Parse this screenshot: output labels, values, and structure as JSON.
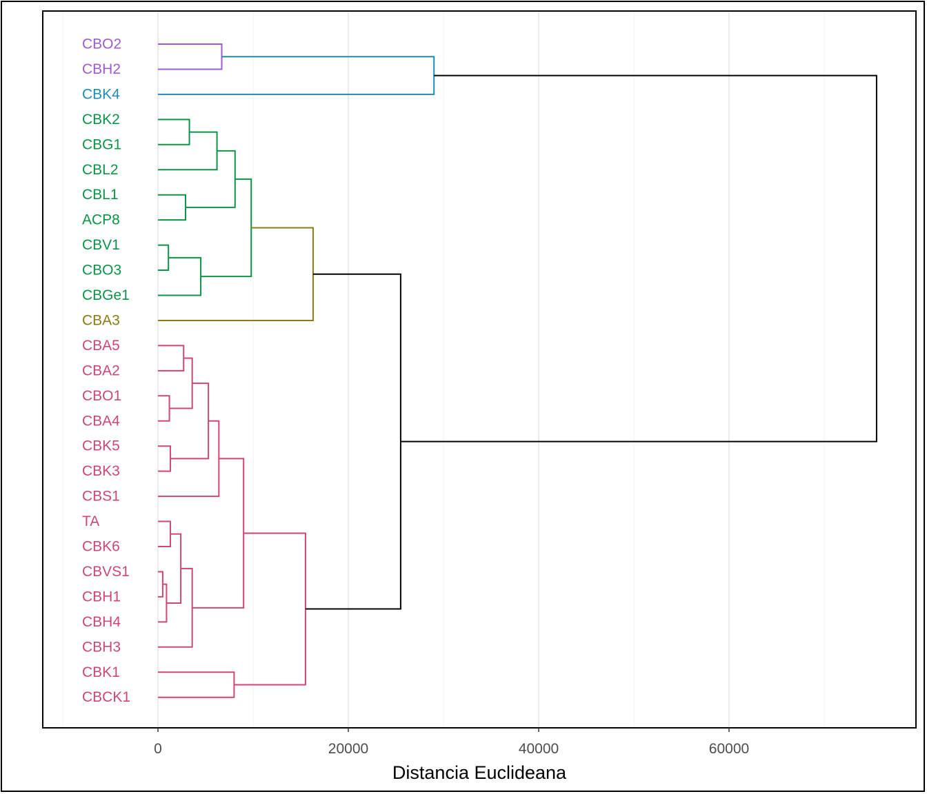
{
  "chart_data": {
    "type": "dendrogram",
    "title": "",
    "xlabel": "Distancia Euclideana",
    "ylabel": "",
    "xlim": [
      -10000,
      79000
    ],
    "x_ticks": [
      0,
      20000,
      40000,
      60000
    ],
    "x_tick_labels": [
      "0",
      "20000",
      "40000",
      "60000"
    ],
    "grid": true,
    "cluster_colors": {
      "purple": "#A05AD2",
      "blue": "#1E8CB4",
      "green": "#0A9446",
      "olive": "#8C7A14",
      "pink": "#CD4678",
      "root": "#000000"
    },
    "leaves": [
      {
        "label": "CBO2",
        "color": "#A05AD2"
      },
      {
        "label": "CBH2",
        "color": "#A05AD2"
      },
      {
        "label": "CBK4",
        "color": "#1E8CB4"
      },
      {
        "label": "CBK2",
        "color": "#0A9446"
      },
      {
        "label": "CBG1",
        "color": "#0A9446"
      },
      {
        "label": "CBL2",
        "color": "#0A9446"
      },
      {
        "label": "CBL1",
        "color": "#0A9446"
      },
      {
        "label": "ACP8",
        "color": "#0A9446"
      },
      {
        "label": "CBV1",
        "color": "#0A9446"
      },
      {
        "label": "CBO3",
        "color": "#0A9446"
      },
      {
        "label": "CBGe1",
        "color": "#0A9446"
      },
      {
        "label": "CBA3",
        "color": "#8C7A14"
      },
      {
        "label": "CBA5",
        "color": "#CD4678"
      },
      {
        "label": "CBA2",
        "color": "#CD4678"
      },
      {
        "label": "CBO1",
        "color": "#CD4678"
      },
      {
        "label": "CBA4",
        "color": "#CD4678"
      },
      {
        "label": "CBK5",
        "color": "#CD4678"
      },
      {
        "label": "CBK3",
        "color": "#CD4678"
      },
      {
        "label": "CBS1",
        "color": "#CD4678"
      },
      {
        "label": "TA",
        "color": "#CD4678"
      },
      {
        "label": "CBK6",
        "color": "#CD4678"
      },
      {
        "label": "CBVS1",
        "color": "#CD4678"
      },
      {
        "label": "CBH1",
        "color": "#CD4678"
      },
      {
        "label": "CBH4",
        "color": "#CD4678"
      },
      {
        "label": "CBH3",
        "color": "#CD4678"
      },
      {
        "label": "CBK1",
        "color": "#CD4678"
      },
      {
        "label": "CBCK1",
        "color": "#CD4678"
      }
    ],
    "merges": [
      {
        "a": "CBO2",
        "b": "CBH2",
        "height": 6700,
        "color": "#A05AD2",
        "id": "m1"
      },
      {
        "a": "m1",
        "b": "CBK4",
        "height": 29000,
        "color": "#1E8CB4",
        "id": "m2"
      },
      {
        "a": "CBK2",
        "b": "CBG1",
        "height": 3300,
        "color": "#0A9446",
        "id": "m3"
      },
      {
        "a": "m3",
        "b": "CBL2",
        "height": 6200,
        "color": "#0A9446",
        "id": "m4"
      },
      {
        "a": "CBL1",
        "b": "ACP8",
        "height": 2900,
        "color": "#0A9446",
        "id": "m5"
      },
      {
        "a": "m4",
        "b": "m5",
        "height": 8100,
        "color": "#0A9446",
        "id": "m6"
      },
      {
        "a": "CBV1",
        "b": "CBO3",
        "height": 1100,
        "color": "#0A9446",
        "id": "m7"
      },
      {
        "a": "m7",
        "b": "CBGe1",
        "height": 4500,
        "color": "#0A9446",
        "id": "m8"
      },
      {
        "a": "m6",
        "b": "m8",
        "height": 9800,
        "color": "#0A9446",
        "id": "m9"
      },
      {
        "a": "m9",
        "b": "CBA3",
        "height": 16300,
        "color": "#8C7A14",
        "id": "m10"
      },
      {
        "a": "CBA5",
        "b": "CBA2",
        "height": 2700,
        "color": "#CD4678",
        "id": "m11"
      },
      {
        "a": "CBO1",
        "b": "CBA4",
        "height": 1200,
        "color": "#CD4678",
        "id": "m12"
      },
      {
        "a": "m11",
        "b": "m12",
        "height": 3600,
        "color": "#CD4678",
        "id": "m13"
      },
      {
        "a": "CBK5",
        "b": "CBK3",
        "height": 1300,
        "color": "#CD4678",
        "id": "m14"
      },
      {
        "a": "m13",
        "b": "m14",
        "height": 5300,
        "color": "#CD4678",
        "id": "m15"
      },
      {
        "a": "m15",
        "b": "CBS1",
        "height": 6400,
        "color": "#CD4678",
        "id": "m16"
      },
      {
        "a": "TA",
        "b": "CBK6",
        "height": 1300,
        "color": "#CD4678",
        "id": "m17"
      },
      {
        "a": "CBVS1",
        "b": "CBH1",
        "height": 500,
        "color": "#CD4678",
        "id": "m18"
      },
      {
        "a": "m18",
        "b": "CBH4",
        "height": 900,
        "color": "#CD4678",
        "id": "m19"
      },
      {
        "a": "m17",
        "b": "m19",
        "height": 2400,
        "color": "#CD4678",
        "id": "m20"
      },
      {
        "a": "m20",
        "b": "CBH3",
        "height": 3600,
        "color": "#CD4678",
        "id": "m21"
      },
      {
        "a": "m16",
        "b": "m21",
        "height": 9000,
        "color": "#CD4678",
        "id": "m22"
      },
      {
        "a": "CBK1",
        "b": "CBCK1",
        "height": 8000,
        "color": "#CD4678",
        "id": "m23"
      },
      {
        "a": "m22",
        "b": "m23",
        "height": 15500,
        "color": "#CD4678",
        "id": "m24"
      },
      {
        "a": "m24",
        "b": "m10",
        "height": 25500,
        "color": "#000000",
        "id": "m25"
      },
      {
        "a": "m25",
        "b": "m2",
        "height": 75500,
        "color": "#000000",
        "id": "m26"
      }
    ]
  }
}
